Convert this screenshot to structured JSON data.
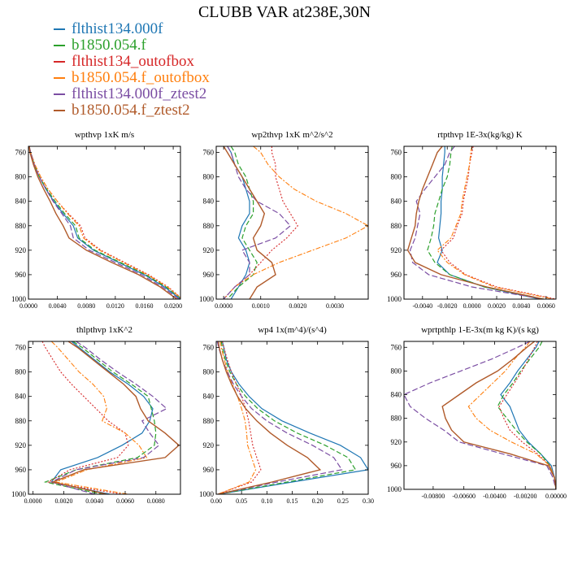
{
  "title": "CLUBB VAR at238E,30N",
  "colors": [
    "#1f77b4",
    "#2ca02c",
    "#d62728",
    "#ff7f0e",
    "#7b4ea3",
    "#b05a2a"
  ],
  "legend": [
    {
      "label": "flthist134.000f",
      "color": "#1f77b4"
    },
    {
      "label": "b1850.054.f",
      "color": "#2ca02c"
    },
    {
      "label": "flthist134_outofbox",
      "color": "#d62728"
    },
    {
      "label": "b1850.054.f_outofbox",
      "color": "#ff7f0e"
    },
    {
      "label": "flthist134.000f_ztest2",
      "color": "#7b4ea3"
    },
    {
      "label": "b1850.054.f_ztest2",
      "color": "#b05a2a"
    }
  ],
  "chart_data": [
    {
      "type": "line",
      "title": "wpthvp  1xK m/s",
      "xlim": [
        0,
        0.021
      ],
      "ylim": [
        1000,
        750
      ],
      "xticks": [
        0,
        0.004,
        0.008,
        0.012,
        0.016,
        0.02
      ],
      "xtick_labels": [
        "0.0000",
        "0.0040",
        "0.0080",
        "0.0120",
        "0.0160",
        "0.0200"
      ],
      "yticks": [
        760,
        800,
        840,
        880,
        920,
        960,
        1000
      ],
      "y": [
        750,
        760,
        780,
        800,
        820,
        840,
        860,
        880,
        900,
        920,
        940,
        960,
        980,
        1000
      ],
      "series": [
        {
          "values": [
            0.0001,
            0.0003,
            0.0008,
            0.0015,
            0.0024,
            0.0035,
            0.0048,
            0.0062,
            0.0068,
            0.009,
            0.0125,
            0.016,
            0.0188,
            0.021
          ]
        },
        {
          "values": [
            0.0001,
            0.0003,
            0.0008,
            0.0015,
            0.0025,
            0.0037,
            0.005,
            0.0065,
            0.007,
            0.0092,
            0.0127,
            0.0162,
            0.019,
            0.0212
          ]
        },
        {
          "values": [
            0.0001,
            0.0003,
            0.0009,
            0.0017,
            0.0027,
            0.004,
            0.0055,
            0.0072,
            0.0078,
            0.01,
            0.0133,
            0.0166,
            0.0193,
            0.0213
          ]
        },
        {
          "values": [
            0.0001,
            0.0003,
            0.0009,
            0.0017,
            0.0027,
            0.004,
            0.0054,
            0.007,
            0.0076,
            0.0098,
            0.0131,
            0.0164,
            0.0192,
            0.0212
          ]
        },
        {
          "values": [
            0.0001,
            0.0003,
            0.0008,
            0.0015,
            0.0024,
            0.0034,
            0.0046,
            0.0058,
            0.0062,
            0.0084,
            0.012,
            0.0156,
            0.0185,
            0.0208
          ]
        },
        {
          "values": [
            0.0001,
            0.0002,
            0.0007,
            0.0013,
            0.0021,
            0.003,
            0.0038,
            0.0048,
            0.0056,
            0.008,
            0.0115,
            0.0152,
            0.0182,
            0.0205
          ]
        }
      ]
    },
    {
      "type": "line",
      "title": "wp2thvp  1xK m^2/s^2",
      "xlim": [
        -0.0002,
        0.0039
      ],
      "ylim": [
        1000,
        750
      ],
      "xticks": [
        0,
        0.001,
        0.002,
        0.003
      ],
      "xtick_labels": [
        "0.0000",
        "0.0010",
        "0.0020",
        "0.0030"
      ],
      "yticks": [
        760,
        800,
        840,
        880,
        920,
        960,
        1000
      ],
      "y": [
        750,
        760,
        780,
        800,
        820,
        840,
        860,
        880,
        900,
        920,
        940,
        960,
        980,
        1000
      ],
      "series": [
        {
          "values": [
            0.0001,
            0.0002,
            0.0003,
            0.0005,
            0.0006,
            0.0007,
            0.0007,
            0.0005,
            0.0004,
            0.0006,
            0.0007,
            0.0006,
            0.0004,
            0.0002
          ]
        },
        {
          "values": [
            0.0002,
            0.0003,
            0.0004,
            0.0006,
            0.0007,
            0.0008,
            0.0008,
            0.0006,
            0.0005,
            0.0007,
            0.0009,
            0.0008,
            0.0004,
            0.0001
          ]
        },
        {
          "values": [
            0.0013,
            0.0013,
            0.0014,
            0.0014,
            0.0015,
            0.0016,
            0.0018,
            0.002,
            0.0017,
            0.0013,
            0.001,
            0.0007,
            0.0003,
            0.0
          ]
        },
        {
          "values": [
            0.0008,
            0.001,
            0.0012,
            0.0015,
            0.0019,
            0.0025,
            0.0033,
            0.0039,
            0.0033,
            0.0024,
            0.0015,
            0.0008,
            0.0003,
            0.0
          ]
        },
        {
          "values": [
            0.0001,
            0.0002,
            0.0003,
            0.0004,
            0.0006,
            0.0009,
            0.0015,
            0.0018,
            0.0014,
            0.0005,
            0.0007,
            0.0007,
            0.0003,
            0.0
          ]
        },
        {
          "values": [
            0.0,
            0.0001,
            0.0003,
            0.0005,
            0.0007,
            0.0009,
            0.0011,
            0.001,
            0.0008,
            0.0009,
            0.0013,
            0.0014,
            0.0009,
            0.0007
          ]
        }
      ]
    },
    {
      "type": "line",
      "title": "rtpthvp  1E-3x(kg/kg) K",
      "xlim": [
        -0.0055,
        0.0068
      ],
      "ylim": [
        1000,
        750
      ],
      "xticks": [
        -0.004,
        -0.002,
        0,
        0.002,
        0.004,
        0.006
      ],
      "xtick_labels": [
        "-0.0040",
        "-0.0020",
        "0.0000",
        "0.0020",
        "0.0040",
        "0.0060"
      ],
      "yticks": [
        760,
        800,
        840,
        880,
        920,
        960,
        1000
      ],
      "y": [
        750,
        760,
        780,
        800,
        820,
        840,
        860,
        880,
        900,
        920,
        940,
        960,
        980,
        1000
      ],
      "series": [
        {
          "values": [
            -0.0022,
            -0.0022,
            -0.0023,
            -0.0024,
            -0.0024,
            -0.0025,
            -0.0025,
            -0.0026,
            -0.0027,
            -0.0024,
            -0.0028,
            -0.0018,
            0.001,
            0.0055
          ]
        },
        {
          "values": [
            -0.0016,
            -0.0017,
            -0.0018,
            -0.002,
            -0.0024,
            -0.0027,
            -0.003,
            -0.0031,
            -0.0033,
            -0.0036,
            -0.003,
            -0.0018,
            0.001,
            0.0058
          ]
        },
        {
          "values": [
            0.0001,
            0.0,
            -0.0002,
            -0.0003,
            -0.0005,
            -0.0007,
            -0.0008,
            -0.0012,
            -0.0015,
            -0.0025,
            -0.0018,
            -0.0005,
            0.002,
            0.0068
          ]
        },
        {
          "values": [
            0.0,
            -0.0001,
            -0.0002,
            -0.0004,
            -0.0006,
            -0.0008,
            -0.0009,
            -0.0013,
            -0.0017,
            -0.0028,
            -0.002,
            -0.0006,
            0.0018,
            0.0066
          ]
        },
        {
          "values": [
            -0.0014,
            -0.0018,
            -0.0022,
            -0.003,
            -0.0038,
            -0.0045,
            -0.0042,
            -0.0044,
            -0.0046,
            -0.005,
            -0.0048,
            -0.0035,
            0.0,
            0.0058
          ]
        },
        {
          "values": [
            -0.0024,
            -0.0028,
            -0.0032,
            -0.0036,
            -0.004,
            -0.0043,
            -0.0045,
            -0.0046,
            -0.0049,
            -0.0052,
            -0.0046,
            -0.0025,
            0.0012,
            0.0058
          ]
        }
      ]
    },
    {
      "type": "line",
      "title": "thlpthvp  1xK^2",
      "xlim": [
        -0.0003,
        0.0096
      ],
      "ylim": [
        1000,
        750
      ],
      "xticks": [
        0,
        0.002,
        0.004,
        0.006,
        0.008
      ],
      "xtick_labels": [
        "0.0000",
        "0.0020",
        "0.0040",
        "0.0060",
        "0.0080"
      ],
      "yticks": [
        760,
        800,
        840,
        880,
        920,
        960,
        1000
      ],
      "y": [
        750,
        760,
        780,
        800,
        820,
        840,
        860,
        880,
        900,
        920,
        940,
        960,
        980,
        1000
      ],
      "series": [
        {
          "values": [
            0.0025,
            0.003,
            0.004,
            0.005,
            0.0062,
            0.0072,
            0.0078,
            0.0076,
            0.0071,
            0.0058,
            0.0042,
            0.0018,
            0.0012,
            0.005
          ]
        },
        {
          "values": [
            0.0026,
            0.0032,
            0.0042,
            0.0052,
            0.0064,
            0.0075,
            0.0077,
            0.0079,
            0.008,
            0.0079,
            0.0068,
            0.0028,
            0.0008,
            0.0045
          ]
        },
        {
          "values": [
            0.0006,
            0.0008,
            0.0013,
            0.0018,
            0.0025,
            0.0033,
            0.0041,
            0.0049,
            0.006,
            0.0062,
            0.0055,
            0.0024,
            0.001,
            0.0058
          ]
        },
        {
          "values": [
            0.0012,
            0.0016,
            0.0023,
            0.003,
            0.0039,
            0.0046,
            0.0048,
            0.0045,
            0.006,
            0.0069,
            0.0074,
            0.0035,
            0.0015,
            0.0062
          ]
        },
        {
          "values": [
            0.0028,
            0.0034,
            0.0044,
            0.0055,
            0.0067,
            0.0078,
            0.0087,
            0.0071,
            0.0076,
            0.0082,
            0.0072,
            0.0028,
            0.0012,
            0.004
          ]
        },
        {
          "values": [
            0.0023,
            0.0029,
            0.0039,
            0.0049,
            0.0059,
            0.0067,
            0.007,
            0.0075,
            0.0086,
            0.0095,
            0.0086,
            0.0033,
            0.0013,
            0.0048
          ]
        }
      ]
    },
    {
      "type": "line",
      "title": "wp4  1x(m^4)/(s^4)",
      "xlim": [
        0,
        0.3
      ],
      "ylim": [
        1000,
        750
      ],
      "xticks": [
        0,
        0.05,
        0.1,
        0.15,
        0.2,
        0.25,
        0.3
      ],
      "xtick_labels": [
        "0.00",
        "0.05",
        "0.10",
        "0.15",
        "0.20",
        "0.25",
        "0.30"
      ],
      "yticks": [
        760,
        800,
        840,
        880,
        920,
        960,
        1000
      ],
      "y": [
        750,
        760,
        780,
        800,
        820,
        840,
        860,
        880,
        900,
        920,
        940,
        960,
        980,
        1000
      ],
      "series": [
        {
          "values": [
            0.012,
            0.015,
            0.02,
            0.03,
            0.045,
            0.065,
            0.09,
            0.13,
            0.185,
            0.245,
            0.285,
            0.3,
            0.15,
            0.005
          ]
        },
        {
          "values": [
            0.01,
            0.012,
            0.018,
            0.027,
            0.04,
            0.058,
            0.082,
            0.115,
            0.16,
            0.215,
            0.26,
            0.275,
            0.14,
            0.005
          ]
        },
        {
          "values": [
            0.012,
            0.015,
            0.022,
            0.03,
            0.04,
            0.05,
            0.058,
            0.064,
            0.068,
            0.072,
            0.08,
            0.088,
            0.07,
            0.003
          ]
        },
        {
          "values": [
            0.008,
            0.01,
            0.016,
            0.023,
            0.032,
            0.042,
            0.05,
            0.057,
            0.06,
            0.062,
            0.07,
            0.078,
            0.065,
            0.003
          ]
        },
        {
          "values": [
            0.002,
            0.005,
            0.012,
            0.022,
            0.034,
            0.05,
            0.07,
            0.1,
            0.14,
            0.19,
            0.232,
            0.248,
            0.12,
            0.004
          ]
        },
        {
          "values": [
            0.004,
            0.006,
            0.012,
            0.02,
            0.03,
            0.042,
            0.058,
            0.08,
            0.107,
            0.14,
            0.18,
            0.205,
            0.11,
            0.003
          ]
        }
      ]
    },
    {
      "type": "line",
      "title": "wprtpthlp  1-E-3x(m kg K)/(s kg)",
      "xlim": [
        -0.0099,
        0.0
      ],
      "ylim": [
        1000,
        750
      ],
      "xticks": [
        -0.008,
        -0.006,
        -0.004,
        -0.002,
        0
      ],
      "xtick_labels": [
        "-0.00800",
        "-0.00600",
        "-0.00400",
        "-0.00200",
        "0.00000"
      ],
      "yticks": [
        760,
        800,
        840,
        880,
        920,
        960,
        1000
      ],
      "y": [
        750,
        760,
        780,
        800,
        820,
        840,
        860,
        880,
        900,
        920,
        940,
        960,
        980,
        1000
      ],
      "series": [
        {
          "values": [
            -0.0011,
            -0.0013,
            -0.0019,
            -0.0025,
            -0.003,
            -0.0036,
            -0.003,
            -0.0027,
            -0.0024,
            -0.0018,
            -0.001,
            -0.0003,
            -0.0001,
            0.0
          ]
        },
        {
          "values": [
            -0.0009,
            -0.0011,
            -0.0017,
            -0.0023,
            -0.0028,
            -0.0034,
            -0.0038,
            -0.0032,
            -0.0026,
            -0.0019,
            -0.001,
            -0.0004,
            -0.0001,
            0.0
          ]
        },
        {
          "values": [
            -0.0012,
            -0.0014,
            -0.0018,
            -0.0022,
            -0.0027,
            -0.0032,
            -0.0037,
            -0.0034,
            -0.003,
            -0.0022,
            -0.0012,
            -0.0004,
            -0.0001,
            0.0
          ]
        },
        {
          "values": [
            -0.0017,
            -0.002,
            -0.0027,
            -0.0033,
            -0.0041,
            -0.0049,
            -0.0057,
            -0.0052,
            -0.0043,
            -0.0029,
            -0.0013,
            -0.0004,
            -0.0001,
            0.0
          ]
        },
        {
          "values": [
            -0.0017,
            -0.0025,
            -0.0042,
            -0.0062,
            -0.0082,
            -0.0099,
            -0.0095,
            -0.0085,
            -0.0073,
            -0.0063,
            -0.0035,
            -0.0006,
            -0.0002,
            0.0
          ]
        },
        {
          "values": [
            -0.0014,
            -0.0019,
            -0.0028,
            -0.0038,
            -0.0052,
            -0.0063,
            -0.0074,
            -0.0072,
            -0.0068,
            -0.006,
            -0.003,
            -0.0005,
            -0.0001,
            0.0
          ]
        }
      ]
    }
  ]
}
